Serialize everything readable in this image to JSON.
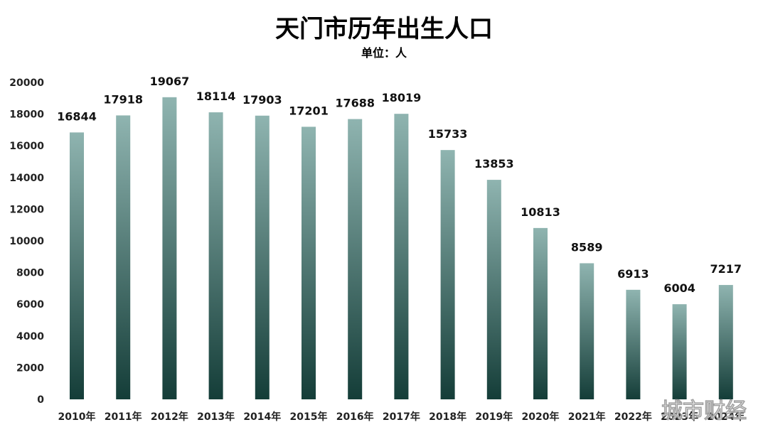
{
  "chart_data": {
    "type": "bar",
    "title": "天门市历年出生人口",
    "subtitle": "单位：人",
    "categories": [
      "2010年",
      "2011年",
      "2012年",
      "2013年",
      "2014年",
      "2015年",
      "2016年",
      "2017年",
      "2018年",
      "2019年",
      "2020年",
      "2021年",
      "2022年",
      "2023年",
      "2024年"
    ],
    "values": [
      16844,
      17918,
      19067,
      18114,
      17903,
      17201,
      17688,
      18019,
      15733,
      13853,
      10813,
      8589,
      6913,
      6004,
      7217
    ],
    "ylim": [
      0,
      20000
    ],
    "yticks": [
      0,
      2000,
      4000,
      6000,
      8000,
      10000,
      12000,
      14000,
      16000,
      18000,
      20000
    ],
    "grid": false,
    "legend": "none",
    "colors": {
      "bar_top": "#8fb4b0",
      "bar_bottom": "#143d38"
    }
  },
  "watermark": "城市财经"
}
